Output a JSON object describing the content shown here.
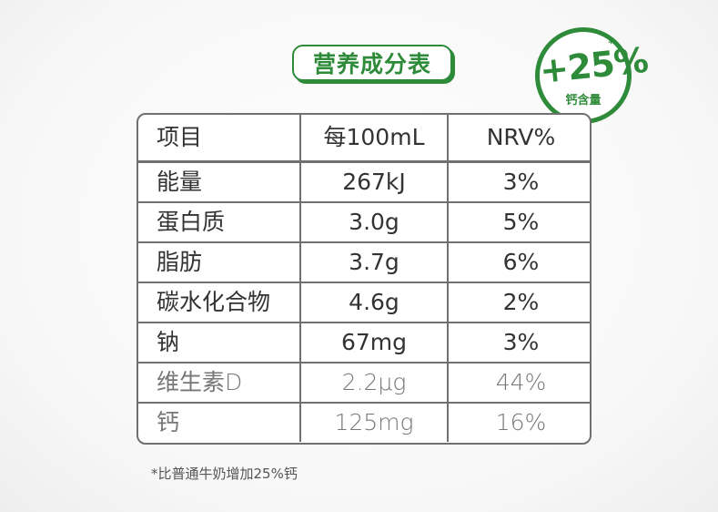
{
  "title": "营养成分表",
  "seal": {
    "star": "*",
    "value": "+25%",
    "label": "钙含量",
    "color": "#2e8b3a"
  },
  "table": {
    "headers": [
      "项目",
      "每100mL",
      "NRV%"
    ],
    "rows": [
      {
        "item": "能量",
        "per100ml": "267kJ",
        "nrv": "3%"
      },
      {
        "item": "蛋白质",
        "per100ml": "3.0g",
        "nrv": "5%"
      },
      {
        "item": "脂肪",
        "per100ml": "3.7g",
        "nrv": "6%"
      },
      {
        "item": "碳水化合物",
        "per100ml": "4.6g",
        "nrv": "2%"
      },
      {
        "item": "钠",
        "per100ml": "67mg",
        "nrv": "3%"
      },
      {
        "item": "维生素D",
        "per100ml": "2.2μg",
        "nrv": "44%"
      },
      {
        "item": "钙",
        "per100ml": "125mg",
        "nrv": "16%"
      }
    ]
  },
  "footnote": "*比普通牛奶增加25%钙"
}
